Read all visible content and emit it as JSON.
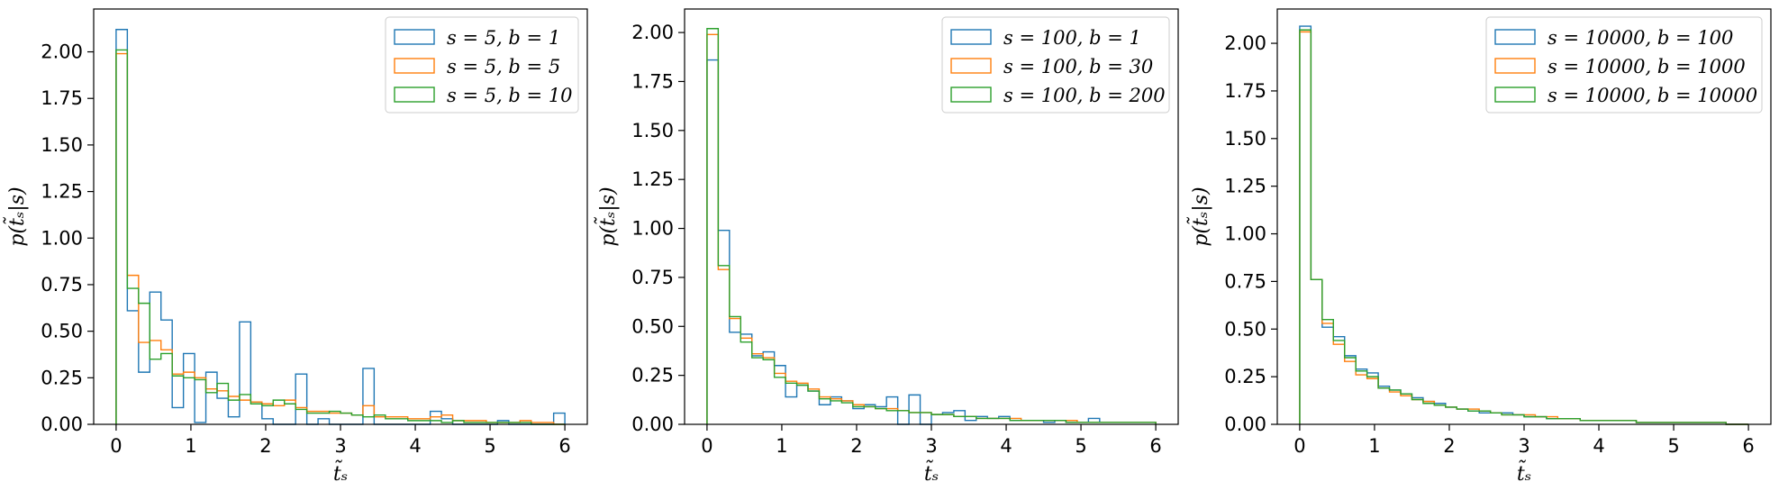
{
  "colors": {
    "blue": "#1f77b4",
    "orange": "#ff7f0e",
    "green": "#2ca02c"
  },
  "chart_data": [
    {
      "type": "histogram-step",
      "xlabel": "t̃ₛ",
      "ylabel": "p(t̃ₛ|s)",
      "xlim": [
        -0.3,
        6.3
      ],
      "ylim": [
        0,
        2.23
      ],
      "xticks": [
        0,
        1,
        2,
        3,
        4,
        5,
        6
      ],
      "yticks": [
        0.0,
        0.25,
        0.5,
        0.75,
        1.0,
        1.25,
        1.5,
        1.75,
        2.0
      ],
      "ytick_labels": [
        "0.00",
        "0.25",
        "0.50",
        "0.75",
        "1.00",
        "1.25",
        "1.50",
        "1.75",
        "2.00"
      ],
      "xtick_labels": [
        "0",
        "1",
        "2",
        "3",
        "4",
        "5",
        "6"
      ],
      "legend_position": "top-right",
      "grid": false,
      "bin_edges": [
        0.0,
        0.15,
        0.3,
        0.45,
        0.6,
        0.75,
        0.9,
        1.05,
        1.2,
        1.35,
        1.5,
        1.65,
        1.8,
        1.95,
        2.1,
        2.25,
        2.4,
        2.55,
        2.7,
        2.85,
        3.0,
        3.15,
        3.3,
        3.45,
        3.6,
        3.75,
        3.9,
        4.05,
        4.2,
        4.35,
        4.5,
        4.65,
        4.8,
        4.95,
        5.1,
        5.25,
        5.4,
        5.55,
        5.7,
        5.85,
        6.0
      ],
      "series": [
        {
          "name": "s = 5, b = 1",
          "color": "blue",
          "values": [
            2.12,
            0.61,
            0.28,
            0.71,
            0.56,
            0.09,
            0.38,
            0.01,
            0.28,
            0.14,
            0.04,
            0.55,
            0.12,
            0.03,
            0.0,
            0.0,
            0.27,
            0.0,
            0.03,
            0.0,
            0.0,
            0.0,
            0.3,
            0.0,
            0.0,
            0.0,
            0.0,
            0.0,
            0.07,
            0.03,
            0.0,
            0.0,
            0.0,
            0.0,
            0.02,
            0.0,
            0.0,
            0.0,
            0.0,
            0.06
          ]
        },
        {
          "name": "s = 5, b = 5",
          "color": "orange",
          "values": [
            1.99,
            0.8,
            0.44,
            0.45,
            0.4,
            0.27,
            0.28,
            0.25,
            0.19,
            0.18,
            0.15,
            0.13,
            0.12,
            0.11,
            0.1,
            0.13,
            0.09,
            0.07,
            0.07,
            0.06,
            0.06,
            0.05,
            0.1,
            0.04,
            0.04,
            0.04,
            0.03,
            0.03,
            0.04,
            0.05,
            0.02,
            0.02,
            0.02,
            0.01,
            0.01,
            0.01,
            0.02,
            0.01,
            0.01,
            0.0
          ]
        },
        {
          "name": "s = 5, b = 10",
          "color": "green",
          "values": [
            2.01,
            0.73,
            0.65,
            0.35,
            0.38,
            0.26,
            0.25,
            0.24,
            0.17,
            0.22,
            0.13,
            0.16,
            0.11,
            0.1,
            0.13,
            0.11,
            0.08,
            0.06,
            0.06,
            0.07,
            0.06,
            0.05,
            0.04,
            0.05,
            0.03,
            0.03,
            0.02,
            0.02,
            0.02,
            0.01,
            0.02,
            0.01,
            0.01,
            0.01,
            0.01,
            0.01,
            0.01,
            0.0,
            0.0,
            0.0
          ]
        }
      ]
    },
    {
      "type": "histogram-step",
      "xlabel": "t̃ₛ",
      "ylabel": "p(t̃ₛ|s)",
      "xlim": [
        -0.3,
        6.3
      ],
      "ylim": [
        0,
        2.12
      ],
      "xticks": [
        0,
        1,
        2,
        3,
        4,
        5,
        6
      ],
      "yticks": [
        0.0,
        0.25,
        0.5,
        0.75,
        1.0,
        1.25,
        1.5,
        1.75,
        2.0
      ],
      "ytick_labels": [
        "0.00",
        "0.25",
        "0.50",
        "0.75",
        "1.00",
        "1.25",
        "1.50",
        "1.75",
        "2.00"
      ],
      "xtick_labels": [
        "0",
        "1",
        "2",
        "3",
        "4",
        "5",
        "6"
      ],
      "legend_position": "top-right",
      "grid": false,
      "bin_edges": [
        0.0,
        0.15,
        0.3,
        0.45,
        0.6,
        0.75,
        0.9,
        1.05,
        1.2,
        1.35,
        1.5,
        1.65,
        1.8,
        1.95,
        2.1,
        2.25,
        2.4,
        2.55,
        2.7,
        2.85,
        3.0,
        3.15,
        3.3,
        3.45,
        3.6,
        3.75,
        3.9,
        4.05,
        4.2,
        4.35,
        4.5,
        4.65,
        4.8,
        4.95,
        5.1,
        5.25,
        5.4,
        5.55,
        5.7,
        5.85,
        6.0
      ],
      "series": [
        {
          "name": "s = 100, b = 1",
          "color": "blue",
          "values": [
            1.86,
            0.99,
            0.47,
            0.46,
            0.35,
            0.37,
            0.3,
            0.14,
            0.2,
            0.17,
            0.1,
            0.14,
            0.12,
            0.08,
            0.1,
            0.09,
            0.14,
            0.0,
            0.15,
            0.0,
            0.05,
            0.06,
            0.07,
            0.02,
            0.04,
            0.03,
            0.04,
            0.02,
            0.02,
            0.02,
            0.01,
            0.02,
            0.01,
            0.01,
            0.03,
            0.01,
            0.01,
            0.01,
            0.01,
            0.01
          ]
        },
        {
          "name": "s = 100, b = 30",
          "color": "orange",
          "values": [
            1.99,
            0.79,
            0.54,
            0.44,
            0.36,
            0.34,
            0.26,
            0.22,
            0.21,
            0.18,
            0.14,
            0.13,
            0.12,
            0.1,
            0.09,
            0.08,
            0.08,
            0.07,
            0.06,
            0.06,
            0.05,
            0.05,
            0.04,
            0.04,
            0.03,
            0.03,
            0.03,
            0.03,
            0.02,
            0.02,
            0.02,
            0.02,
            0.02,
            0.01,
            0.01,
            0.01,
            0.01,
            0.01,
            0.01,
            0.01
          ]
        },
        {
          "name": "s = 100, b = 200",
          "color": "green",
          "values": [
            2.02,
            0.81,
            0.55,
            0.42,
            0.34,
            0.33,
            0.24,
            0.21,
            0.2,
            0.17,
            0.13,
            0.12,
            0.11,
            0.09,
            0.09,
            0.08,
            0.07,
            0.07,
            0.06,
            0.06,
            0.05,
            0.05,
            0.04,
            0.04,
            0.03,
            0.03,
            0.03,
            0.02,
            0.02,
            0.02,
            0.02,
            0.02,
            0.01,
            0.01,
            0.01,
            0.01,
            0.01,
            0.01,
            0.01,
            0.01
          ]
        }
      ]
    },
    {
      "type": "histogram-step",
      "xlabel": "t̃ₛ",
      "ylabel": "p(t̃ₛ|s)",
      "xlim": [
        -0.3,
        6.3
      ],
      "ylim": [
        0,
        2.18
      ],
      "xticks": [
        0,
        1,
        2,
        3,
        4,
        5,
        6
      ],
      "yticks": [
        0.0,
        0.25,
        0.5,
        0.75,
        1.0,
        1.25,
        1.5,
        1.75,
        2.0
      ],
      "ytick_labels": [
        "0.00",
        "0.25",
        "0.50",
        "0.75",
        "1.00",
        "1.25",
        "1.50",
        "1.75",
        "2.00"
      ],
      "xtick_labels": [
        "0",
        "1",
        "2",
        "3",
        "4",
        "5",
        "6"
      ],
      "legend_position": "top-right",
      "grid": false,
      "bin_edges": [
        0.0,
        0.15,
        0.3,
        0.45,
        0.6,
        0.75,
        0.9,
        1.05,
        1.2,
        1.35,
        1.5,
        1.65,
        1.8,
        1.95,
        2.1,
        2.25,
        2.4,
        2.55,
        2.7,
        2.85,
        3.0,
        3.15,
        3.3,
        3.45,
        3.6,
        3.75,
        3.9,
        4.05,
        4.2,
        4.35,
        4.5,
        4.65,
        4.8,
        4.95,
        5.1,
        5.25,
        5.4,
        5.55,
        5.7,
        5.85,
        6.0
      ],
      "series": [
        {
          "name": "s = 10000, b = 100",
          "color": "blue",
          "values": [
            2.09,
            0.76,
            0.51,
            0.46,
            0.36,
            0.29,
            0.27,
            0.2,
            0.18,
            0.16,
            0.14,
            0.12,
            0.11,
            0.09,
            0.08,
            0.07,
            0.06,
            0.06,
            0.06,
            0.05,
            0.04,
            0.04,
            0.03,
            0.03,
            0.03,
            0.02,
            0.02,
            0.02,
            0.02,
            0.02,
            0.01,
            0.01,
            0.01,
            0.01,
            0.01,
            0.01,
            0.01,
            0.01,
            0.0,
            0.0
          ]
        },
        {
          "name": "s = 10000, b = 1000",
          "color": "orange",
          "values": [
            2.06,
            0.76,
            0.53,
            0.42,
            0.33,
            0.26,
            0.24,
            0.19,
            0.17,
            0.15,
            0.13,
            0.12,
            0.1,
            0.09,
            0.08,
            0.08,
            0.07,
            0.06,
            0.05,
            0.05,
            0.05,
            0.04,
            0.04,
            0.03,
            0.03,
            0.02,
            0.02,
            0.02,
            0.02,
            0.02,
            0.01,
            0.01,
            0.01,
            0.01,
            0.01,
            0.01,
            0.01,
            0.01,
            0.0,
            0.0
          ]
        },
        {
          "name": "s = 10000, b = 10000",
          "color": "green",
          "values": [
            2.07,
            0.76,
            0.55,
            0.44,
            0.35,
            0.28,
            0.25,
            0.19,
            0.18,
            0.16,
            0.13,
            0.11,
            0.1,
            0.09,
            0.08,
            0.07,
            0.07,
            0.06,
            0.05,
            0.05,
            0.04,
            0.04,
            0.03,
            0.03,
            0.03,
            0.02,
            0.02,
            0.02,
            0.02,
            0.02,
            0.01,
            0.01,
            0.01,
            0.01,
            0.01,
            0.01,
            0.01,
            0.01,
            0.0,
            0.0
          ]
        }
      ]
    }
  ]
}
